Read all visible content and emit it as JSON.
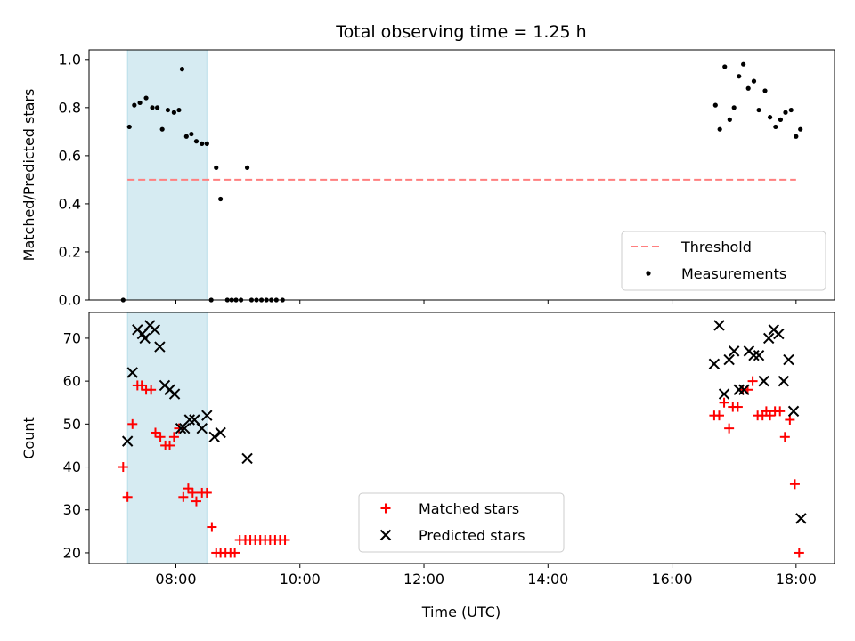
{
  "chart_data": {
    "title": "Total observing time = 1.25 h",
    "xlabel": "Time (UTC)",
    "xlim": [
      6.6,
      18.62
    ],
    "x_ticks": [
      8,
      10,
      12,
      14,
      16,
      18
    ],
    "x_tick_labels": [
      "08:00",
      "10:00",
      "12:00",
      "14:00",
      "16:00",
      "18:00"
    ],
    "shaded_span": {
      "x0": 7.22,
      "x1": 8.5,
      "color": "#add8e6"
    },
    "panels": [
      {
        "type": "scatter",
        "ylabel": "Matched/Predicted stars",
        "ylim": [
          0,
          1.04
        ],
        "y_ticks": [
          0.0,
          0.2,
          0.4,
          0.6,
          0.8,
          1.0
        ],
        "y_tick_labels": [
          "0.0",
          "0.2",
          "0.4",
          "0.6",
          "0.8",
          "1.0"
        ],
        "legend_position": "lower-right",
        "series": [
          {
            "name": "Threshold",
            "kind": "line",
            "color": "#ff7f7f",
            "x": [
              7.22,
              18.0
            ],
            "y": [
              0.5,
              0.5
            ]
          },
          {
            "name": "Measurements",
            "kind": "dots",
            "color": "#000000",
            "x": [
              7.15,
              7.25,
              7.33,
              7.42,
              7.52,
              7.62,
              7.7,
              7.78,
              7.87,
              7.97,
              8.05,
              8.1,
              8.17,
              8.25,
              8.33,
              8.42,
              8.5,
              8.57,
              8.65,
              8.72,
              8.83,
              8.9,
              8.97,
              9.05,
              9.15,
              9.22,
              9.3,
              9.38,
              9.46,
              9.54,
              9.62,
              9.72,
              16.7,
              16.77,
              16.85,
              16.93,
              17.0,
              17.08,
              17.15,
              17.23,
              17.32,
              17.4,
              17.5,
              17.58,
              17.67,
              17.75,
              17.83,
              17.92,
              18.0,
              18.07
            ],
            "y": [
              0.0,
              0.72,
              0.81,
              0.82,
              0.84,
              0.8,
              0.8,
              0.71,
              0.79,
              0.78,
              0.79,
              0.96,
              0.68,
              0.69,
              0.66,
              0.65,
              0.65,
              0.0,
              0.55,
              0.42,
              0.0,
              0.0,
              0.0,
              0.0,
              0.55,
              0.0,
              0.0,
              0.0,
              0.0,
              0.0,
              0.0,
              0.0,
              0.81,
              0.71,
              0.97,
              0.75,
              0.8,
              0.93,
              0.98,
              0.88,
              0.91,
              0.79,
              0.87,
              0.76,
              0.72,
              0.75,
              0.78,
              0.79,
              0.68,
              0.71
            ]
          }
        ]
      },
      {
        "type": "scatter",
        "ylabel": "Count",
        "ylim": [
          17.5,
          76
        ],
        "y_ticks": [
          20,
          30,
          40,
          50,
          60,
          70
        ],
        "y_tick_labels": [
          "20",
          "30",
          "40",
          "50",
          "60",
          "70"
        ],
        "legend_position": "lower-center",
        "series": [
          {
            "name": "Matched stars",
            "kind": "plus",
            "color": "#ff0000",
            "x": [
              7.15,
              7.22,
              7.3,
              7.38,
              7.45,
              7.52,
              7.6,
              7.67,
              7.75,
              7.83,
              7.9,
              7.97,
              8.05,
              8.12,
              8.2,
              8.27,
              8.33,
              8.42,
              8.5,
              8.58,
              8.65,
              8.72,
              8.8,
              8.88,
              8.95,
              9.03,
              9.12,
              9.2,
              9.28,
              9.36,
              9.44,
              9.52,
              9.6,
              9.68,
              9.76,
              16.68,
              16.76,
              16.84,
              16.92,
              16.98,
              17.06,
              17.14,
              17.22,
              17.3,
              17.38,
              17.46,
              17.52,
              17.58,
              17.66,
              17.74,
              17.82,
              17.9,
              17.98,
              18.05
            ],
            "y": [
              40,
              33,
              50,
              59,
              59,
              58,
              58,
              48,
              47,
              45,
              45,
              47,
              49,
              33,
              35,
              34,
              32,
              34,
              34,
              26,
              20,
              20,
              20,
              20,
              20,
              23,
              23,
              23,
              23,
              23,
              23,
              23,
              23,
              23,
              23,
              52,
              52,
              55,
              49,
              54,
              54,
              58,
              58,
              60,
              52,
              52,
              53,
              52,
              53,
              53,
              47,
              51,
              36,
              20
            ]
          },
          {
            "name": "Predicted stars",
            "kind": "cross",
            "color": "#000000",
            "x": [
              7.22,
              7.3,
              7.38,
              7.46,
              7.5,
              7.58,
              7.66,
              7.74,
              7.82,
              7.9,
              7.98,
              8.08,
              8.14,
              8.22,
              8.3,
              8.42,
              8.5,
              8.62,
              8.72,
              9.15,
              16.68,
              16.76,
              16.84,
              16.92,
              17.0,
              17.08,
              17.16,
              17.24,
              17.32,
              17.4,
              17.48,
              17.56,
              17.64,
              17.72,
              17.8,
              17.88,
              17.96,
              18.08
            ],
            "y": [
              46,
              62,
              72,
              71,
              70,
              73,
              72,
              68,
              59,
              58,
              57,
              49,
              49,
              51,
              51,
              49,
              52,
              47,
              48,
              42,
              64,
              73,
              57,
              65,
              67,
              58,
              58,
              67,
              66,
              66,
              60,
              70,
              72,
              71,
              60,
              65,
              53,
              28
            ]
          }
        ]
      }
    ]
  }
}
